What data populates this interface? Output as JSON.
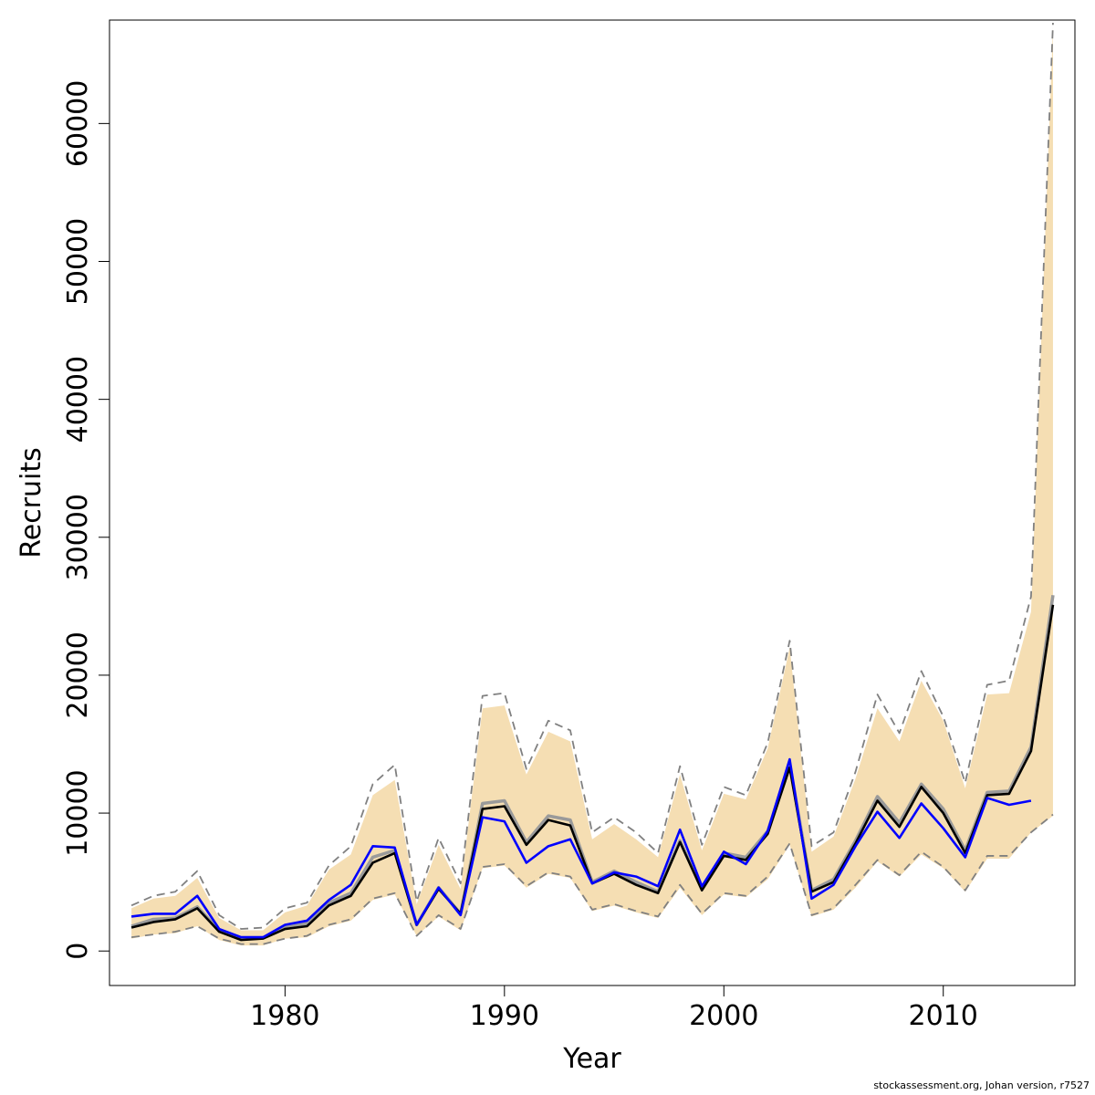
{
  "chart_data": {
    "type": "line",
    "title": "",
    "xlabel": "Year",
    "ylabel": "Recruits",
    "xlim": [
      1972,
      2016
    ],
    "ylim": [
      -2500,
      67500
    ],
    "x_ticks": [
      1980,
      1990,
      2000,
      2010
    ],
    "x_tick_labels": [
      "1980",
      "1990",
      "2000",
      "2010"
    ],
    "y_ticks": [
      0,
      10000,
      20000,
      30000,
      40000,
      50000,
      60000
    ],
    "y_tick_labels": [
      "0",
      "10000",
      "20000",
      "30000",
      "40000",
      "50000",
      "60000"
    ],
    "grid": false,
    "legend": "none",
    "x": [
      1973,
      1974,
      1975,
      1976,
      1977,
      1978,
      1979,
      1980,
      1981,
      1982,
      1983,
      1984,
      1985,
      1986,
      1987,
      1988,
      1989,
      1990,
      1991,
      1992,
      1993,
      1994,
      1995,
      1996,
      1997,
      1998,
      1999,
      2000,
      2001,
      2002,
      2003,
      2004,
      2005,
      2006,
      2007,
      2008,
      2009,
      2010,
      2011,
      2012,
      2013,
      2014,
      2015
    ],
    "series": [
      {
        "role": "band",
        "color": "#f5deb3",
        "upper": [
          3100,
          3800,
          4000,
          5300,
          2400,
          1500,
          1500,
          2800,
          3300,
          5900,
          7000,
          11300,
          12400,
          3400,
          7700,
          4500,
          17600,
          17800,
          12800,
          15900,
          15200,
          8100,
          9200,
          8100,
          6800,
          12800,
          7300,
          11400,
          11000,
          14700,
          22000,
          7200,
          8300,
          12500,
          17600,
          15200,
          19600,
          16700,
          11800,
          18600,
          18700,
          24600,
          67000
        ],
        "lower": [
          900,
          1200,
          1300,
          1800,
          800,
          400,
          400,
          900,
          1000,
          1800,
          2200,
          3700,
          4100,
          1100,
          2500,
          1500,
          6000,
          6200,
          4600,
          5600,
          5300,
          2900,
          3300,
          2800,
          2400,
          4600,
          2600,
          4100,
          3900,
          5200,
          7700,
          2500,
          3000,
          4600,
          6500,
          5400,
          7000,
          6000,
          4300,
          6700,
          6700,
          8600,
          9800
        ]
      },
      {
        "role": "upper-ci",
        "color": "#808080",
        "values": [
          3300,
          4000,
          4300,
          5800,
          2600,
          1600,
          1700,
          3100,
          3500,
          6200,
          7600,
          12100,
          13500,
          3600,
          8200,
          4900,
          18500,
          18700,
          13200,
          16700,
          16000,
          8600,
          9700,
          8600,
          7100,
          13400,
          7700,
          11900,
          11300,
          15100,
          22500,
          7600,
          8600,
          13000,
          18600,
          15800,
          20300,
          17000,
          12200,
          19300,
          19600,
          25700,
          67300
        ]
      },
      {
        "role": "lower-ci",
        "color": "#808080",
        "values": [
          1000,
          1200,
          1400,
          1800,
          900,
          500,
          500,
          900,
          1100,
          1900,
          2300,
          3800,
          4200,
          1100,
          2600,
          1600,
          6100,
          6300,
          4700,
          5700,
          5400,
          3000,
          3400,
          2900,
          2500,
          4800,
          2700,
          4200,
          4000,
          5400,
          7800,
          2600,
          3100,
          4800,
          6600,
          5500,
          7200,
          6100,
          4400,
          6900,
          6900,
          8600,
          9900
        ]
      },
      {
        "role": "shadow",
        "color": "#9a9a9a",
        "values": [
          1800,
          2300,
          2400,
          3200,
          1500,
          900,
          950,
          1800,
          2000,
          3500,
          4200,
          6800,
          7300,
          1900,
          4600,
          2700,
          10700,
          10900,
          7900,
          9800,
          9500,
          5000,
          5800,
          5000,
          4300,
          8000,
          4500,
          7100,
          6800,
          8700,
          13600,
          4400,
          5200,
          8000,
          11200,
          9300,
          12100,
          10300,
          7300,
          11500,
          11600,
          14800,
          25800
        ]
      },
      {
        "role": "estimate",
        "color": "#000000",
        "values": [
          1700,
          2100,
          2300,
          3100,
          1400,
          800,
          900,
          1600,
          1800,
          3300,
          4000,
          6400,
          7100,
          1900,
          4500,
          2700,
          10300,
          10500,
          7700,
          9500,
          9100,
          4900,
          5600,
          4800,
          4200,
          7900,
          4400,
          6900,
          6600,
          8500,
          13300,
          4300,
          5000,
          7800,
          10900,
          9000,
          11900,
          10000,
          7100,
          11300,
          11400,
          14500,
          25100
        ]
      },
      {
        "role": "alternative-run",
        "color": "#0000ff",
        "values": [
          2500,
          2700,
          2700,
          4000,
          1600,
          1000,
          1000,
          1900,
          2200,
          3700,
          4800,
          7600,
          7500,
          1900,
          4600,
          2600,
          9700,
          9400,
          6400,
          7600,
          8100,
          4900,
          5700,
          5400,
          4700,
          8800,
          4700,
          7200,
          6300,
          8700,
          13900,
          3800,
          4800,
          7600,
          10100,
          8200,
          10700,
          8900,
          6800,
          11100,
          10600,
          10900,
          null
        ]
      }
    ]
  },
  "footer": {
    "text": "stockassessment.org, Johan version, r7527"
  }
}
